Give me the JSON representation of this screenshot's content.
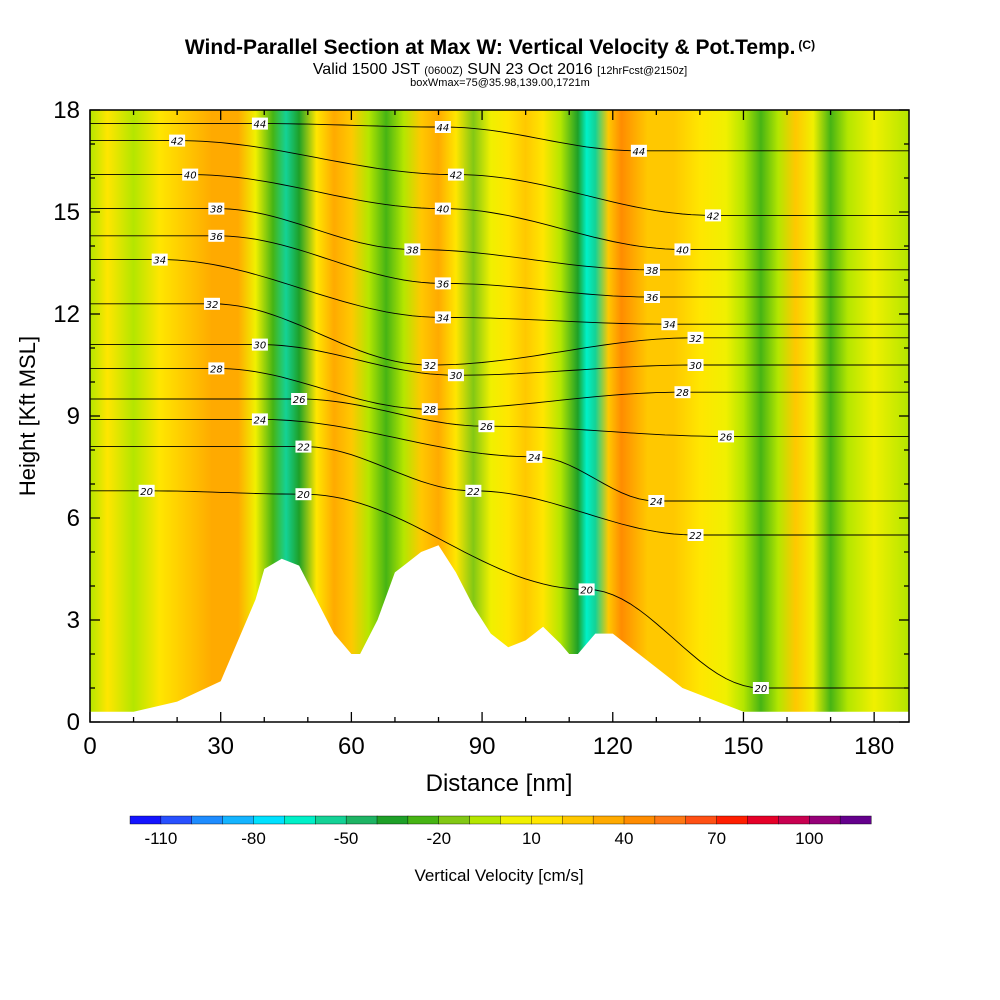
{
  "header": {
    "title": "Wind-Parallel Section at Max W: Vertical Velocity & Pot.Temp.",
    "copyright_mark": "(C)",
    "valid_label": "Valid 1500 JST",
    "utc_time": "(0600Z)",
    "date": "SUN 23 Oct 2016",
    "forecast_info": "[12hrFcst@2150z]",
    "box_info": "boxWmax=75@35.98,139.00,1721m"
  },
  "chart_data": {
    "type": "heatmap",
    "xlabel": "Distance [nm]",
    "ylabel": "Height [Kft MSL]",
    "xlim": [
      0,
      188
    ],
    "ylim": [
      0,
      18
    ],
    "x_ticks": [
      0,
      30,
      60,
      90,
      120,
      150,
      180
    ],
    "y_ticks": [
      0,
      3,
      6,
      9,
      12,
      15,
      18
    ],
    "colorbar": {
      "label": "Vertical Velocity [cm/s]",
      "min": -120,
      "max": 120,
      "step": 10,
      "tick_labels": [
        -110,
        -80,
        -50,
        -20,
        10,
        40,
        70,
        100
      ],
      "colors": [
        "#1414ff",
        "#2850ff",
        "#1e8cff",
        "#14b4ff",
        "#00e1ff",
        "#00f0c8",
        "#14d296",
        "#1eb464",
        "#1ea028",
        "#46b414",
        "#82c814",
        "#b4e600",
        "#f0f000",
        "#ffe600",
        "#ffc800",
        "#ffaa00",
        "#ff8c00",
        "#ff7814",
        "#ff5014",
        "#ff1e00",
        "#e60028",
        "#c80050",
        "#960078",
        "#64008c"
      ]
    },
    "vertical_velocity_bands": [
      {
        "x": 0,
        "w": -10
      },
      {
        "x": 4,
        "w": 10
      },
      {
        "x": 10,
        "w": -10
      },
      {
        "x": 16,
        "w": 15
      },
      {
        "x": 22,
        "w": 25
      },
      {
        "x": 28,
        "w": 35
      },
      {
        "x": 34,
        "w": 30
      },
      {
        "x": 38,
        "w": 0
      },
      {
        "x": 42,
        "w": -30
      },
      {
        "x": 45,
        "w": -55
      },
      {
        "x": 48,
        "w": -35
      },
      {
        "x": 52,
        "w": 10
      },
      {
        "x": 56,
        "w": 30
      },
      {
        "x": 60,
        "w": 20
      },
      {
        "x": 64,
        "w": -10
      },
      {
        "x": 68,
        "w": -25
      },
      {
        "x": 72,
        "w": -5
      },
      {
        "x": 76,
        "w": 20
      },
      {
        "x": 80,
        "w": 35
      },
      {
        "x": 84,
        "w": 10
      },
      {
        "x": 88,
        "w": -20
      },
      {
        "x": 92,
        "w": 0
      },
      {
        "x": 96,
        "w": 15
      },
      {
        "x": 100,
        "w": 25
      },
      {
        "x": 104,
        "w": 15
      },
      {
        "x": 108,
        "w": -10
      },
      {
        "x": 112,
        "w": -40
      },
      {
        "x": 114,
        "w": -70
      },
      {
        "x": 116,
        "w": -55
      },
      {
        "x": 119,
        "w": 25
      },
      {
        "x": 122,
        "w": 45
      },
      {
        "x": 125,
        "w": 35
      },
      {
        "x": 128,
        "w": 20
      },
      {
        "x": 134,
        "w": 25
      },
      {
        "x": 140,
        "w": 15
      },
      {
        "x": 146,
        "w": 5
      },
      {
        "x": 150,
        "w": -10
      },
      {
        "x": 154,
        "w": -25
      },
      {
        "x": 158,
        "w": -10
      },
      {
        "x": 162,
        "w": 20
      },
      {
        "x": 166,
        "w": 5
      },
      {
        "x": 170,
        "w": -30
      },
      {
        "x": 174,
        "w": -10
      },
      {
        "x": 180,
        "w": 0
      },
      {
        "x": 188,
        "w": -5
      }
    ],
    "terrain": {
      "x": [
        0,
        10,
        20,
        30,
        38,
        40,
        44,
        48,
        52,
        56,
        58,
        60,
        62,
        66,
        70,
        72,
        76,
        80,
        84,
        88,
        92,
        96,
        100,
        104,
        108,
        110,
        112,
        116,
        120,
        124,
        128,
        132,
        136,
        140,
        146,
        150,
        156,
        160,
        170,
        180,
        188
      ],
      "height": [
        0.3,
        0.3,
        0.6,
        1.2,
        3.6,
        4.5,
        4.8,
        4.6,
        3.6,
        2.6,
        2.3,
        2.0,
        2.0,
        3.0,
        4.4,
        4.6,
        5.0,
        5.2,
        4.4,
        3.4,
        2.6,
        2.2,
        2.4,
        2.8,
        2.3,
        2.0,
        2.0,
        2.6,
        2.6,
        2.2,
        1.8,
        1.4,
        1.0,
        0.8,
        0.5,
        0.3,
        0.3,
        0.3,
        0.3,
        0.3,
        0.3
      ]
    },
    "theta_contour_labels": [
      {
        "x": 39,
        "y": 17.6,
        "text": "44"
      },
      {
        "x": 81,
        "y": 17.5,
        "text": "44"
      },
      {
        "x": 126,
        "y": 16.8,
        "text": "44"
      },
      {
        "x": 20,
        "y": 17.1,
        "text": "42"
      },
      {
        "x": 84,
        "y": 16.1,
        "text": "42"
      },
      {
        "x": 143,
        "y": 14.9,
        "text": "42"
      },
      {
        "x": 23,
        "y": 16.1,
        "text": "40"
      },
      {
        "x": 81,
        "y": 15.1,
        "text": "40"
      },
      {
        "x": 136,
        "y": 13.9,
        "text": "40"
      },
      {
        "x": 29,
        "y": 15.1,
        "text": "38"
      },
      {
        "x": 74,
        "y": 13.9,
        "text": "38"
      },
      {
        "x": 129,
        "y": 13.3,
        "text": "38"
      },
      {
        "x": 29,
        "y": 14.3,
        "text": "36"
      },
      {
        "x": 81,
        "y": 12.9,
        "text": "36"
      },
      {
        "x": 129,
        "y": 12.5,
        "text": "36"
      },
      {
        "x": 16,
        "y": 13.6,
        "text": "34"
      },
      {
        "x": 81,
        "y": 11.9,
        "text": "34"
      },
      {
        "x": 133,
        "y": 11.7,
        "text": "34"
      },
      {
        "x": 28,
        "y": 12.3,
        "text": "32"
      },
      {
        "x": 78,
        "y": 10.5,
        "text": "32"
      },
      {
        "x": 139,
        "y": 11.3,
        "text": "32"
      },
      {
        "x": 39,
        "y": 11.1,
        "text": "30"
      },
      {
        "x": 84,
        "y": 10.2,
        "text": "30"
      },
      {
        "x": 139,
        "y": 10.5,
        "text": "30"
      },
      {
        "x": 29,
        "y": 10.4,
        "text": "28"
      },
      {
        "x": 78,
        "y": 9.2,
        "text": "28"
      },
      {
        "x": 136,
        "y": 9.7,
        "text": "28"
      },
      {
        "x": 48,
        "y": 9.5,
        "text": "26"
      },
      {
        "x": 91,
        "y": 8.7,
        "text": "26"
      },
      {
        "x": 146,
        "y": 8.4,
        "text": "26"
      },
      {
        "x": 39,
        "y": 8.9,
        "text": "24"
      },
      {
        "x": 102,
        "y": 7.8,
        "text": "24"
      },
      {
        "x": 130,
        "y": 6.5,
        "text": "24"
      },
      {
        "x": 49,
        "y": 8.1,
        "text": "22"
      },
      {
        "x": 88,
        "y": 6.8,
        "text": "22"
      },
      {
        "x": 139,
        "y": 5.5,
        "text": "22"
      },
      {
        "x": 13,
        "y": 6.8,
        "text": "20"
      },
      {
        "x": 49,
        "y": 6.7,
        "text": "20"
      },
      {
        "x": 114,
        "y": 3.9,
        "text": "20"
      },
      {
        "x": 154,
        "y": 1.0,
        "text": "20"
      }
    ]
  }
}
